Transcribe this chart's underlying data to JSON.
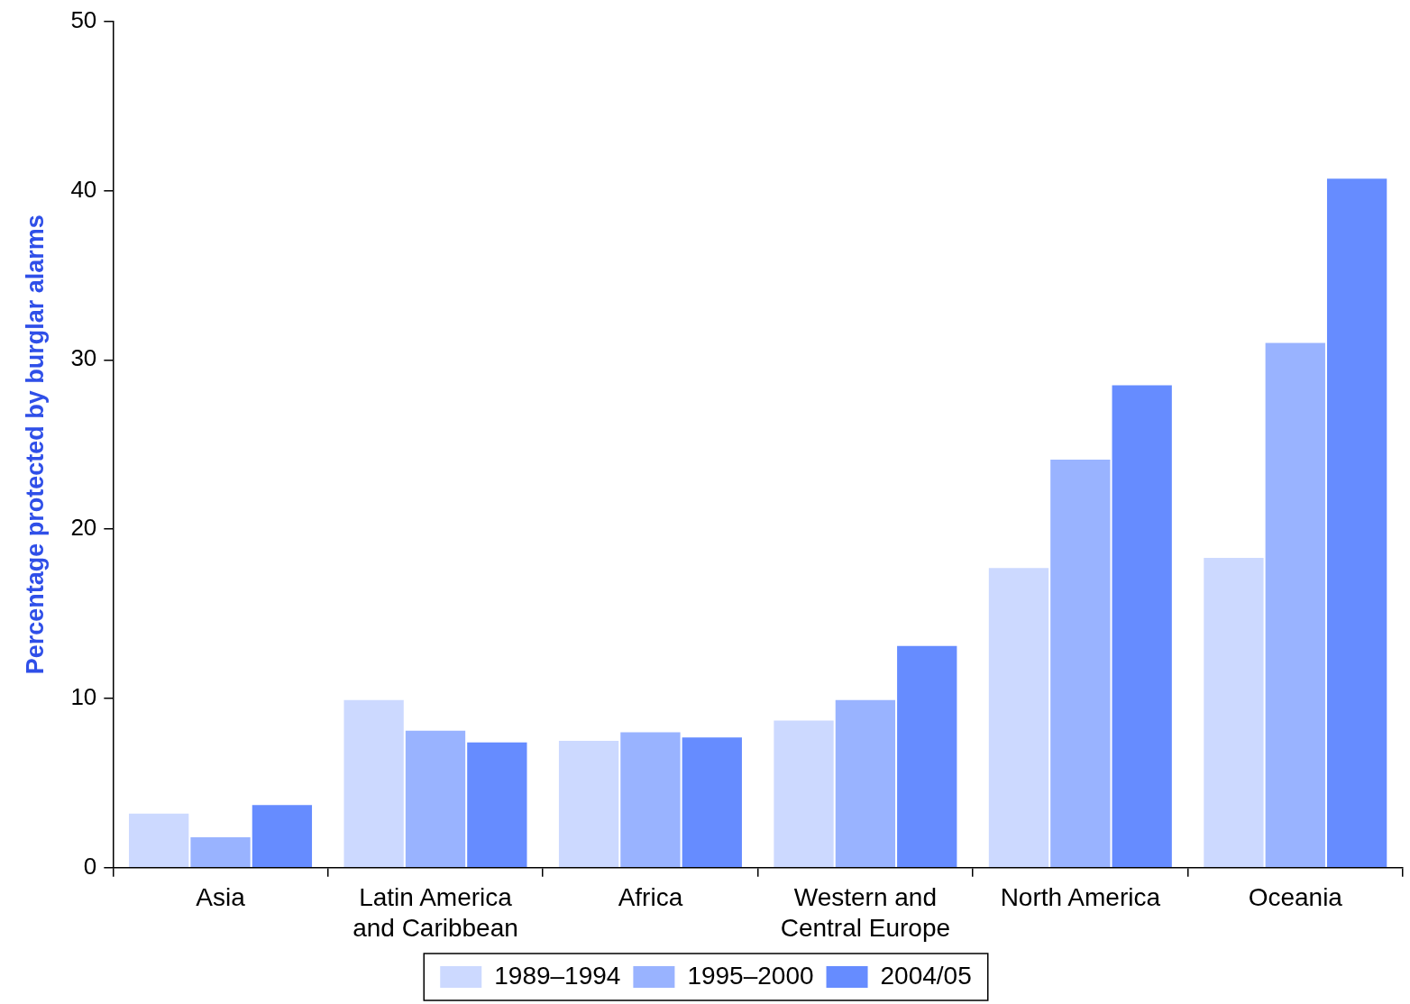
{
  "chart_data": {
    "type": "bar",
    "ylabel": "Percentage protected by burglar alarms",
    "categories": [
      "Asia",
      "Latin America and Caribbean",
      "Africa",
      "Western and Central Europe",
      "North America",
      "Oceania"
    ],
    "series": [
      {
        "name": "1989–1994",
        "color": "#ccd9ff",
        "values": [
          3.2,
          9.9,
          7.5,
          8.7,
          17.7,
          18.3
        ]
      },
      {
        "name": "1995–2000",
        "color": "#99b3ff",
        "values": [
          1.8,
          8.1,
          8.0,
          9.9,
          24.1,
          31.0
        ]
      },
      {
        "name": "2004/05",
        "color": "#668cff",
        "values": [
          3.7,
          7.4,
          7.7,
          13.1,
          28.5,
          40.7
        ]
      }
    ],
    "ylim": [
      0,
      50
    ],
    "yticks": [
      0,
      10,
      20,
      30,
      40,
      50
    ],
    "grid": false,
    "legend": "bottom"
  }
}
